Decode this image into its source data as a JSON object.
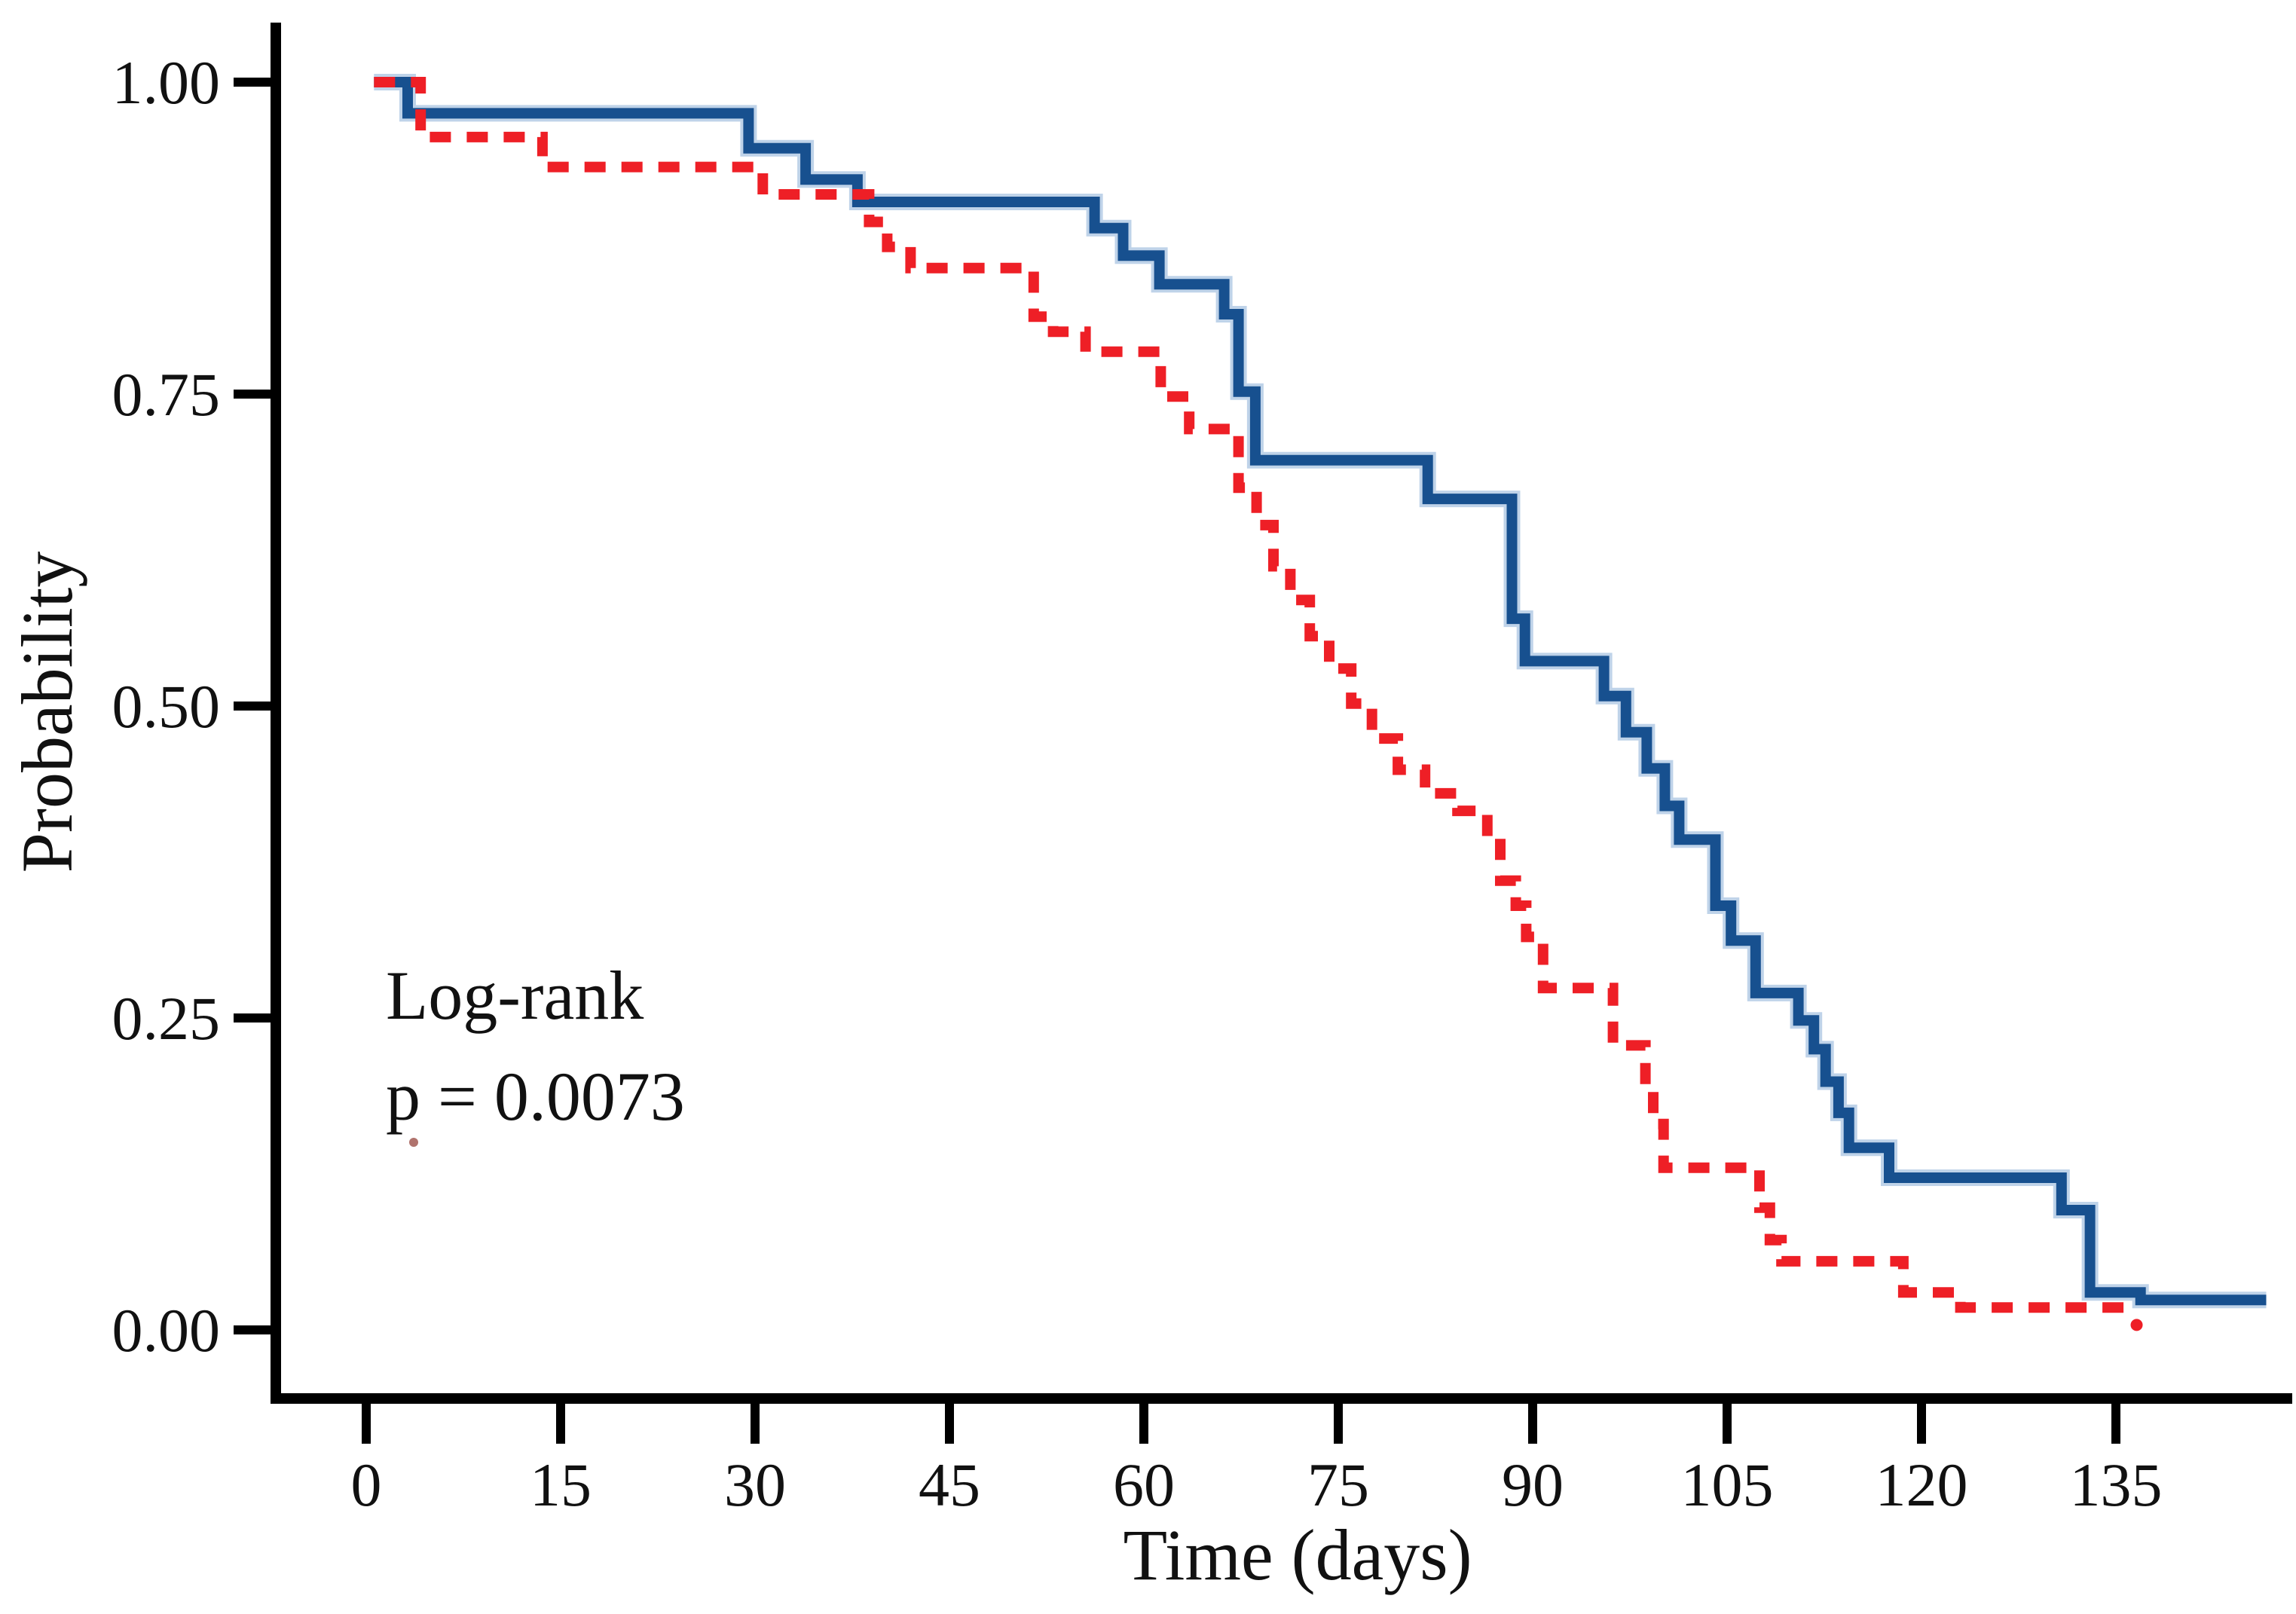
{
  "chart_data": {
    "type": "line",
    "chart_kind": "kaplan-meier-survival",
    "title": "",
    "xlabel": "Time (days)",
    "ylabel": "Probability",
    "x_ticks": [
      0,
      15,
      30,
      45,
      60,
      75,
      90,
      105,
      120,
      135
    ],
    "y_ticks": [
      {
        "value": 1.0,
        "label": "1.00"
      },
      {
        "value": 0.75,
        "label": "0.75"
      },
      {
        "value": 0.5,
        "label": "0.50"
      },
      {
        "value": 0.25,
        "label": "0.25"
      },
      {
        "value": 0.0,
        "label": "0.00"
      }
    ],
    "xlim": [
      0,
      147
    ],
    "ylim": [
      0,
      1
    ],
    "grid": false,
    "legend_position": "none",
    "annotation": {
      "line1": "Log-rank",
      "line2": "p = 0.0073"
    },
    "axis_color": "#000000",
    "series": [
      {
        "name": "group-1-solid-blue",
        "color": "#17508f",
        "halo_color": "#7fa8d4",
        "style": "solid",
        "end_day": 146.6,
        "points": [
          [
            0.6,
            1.0
          ],
          [
            3.2,
            0.975
          ],
          [
            29.5,
            0.947
          ],
          [
            33.9,
            0.922
          ],
          [
            37.9,
            0.904
          ],
          [
            56.2,
            0.883
          ],
          [
            58.4,
            0.861
          ],
          [
            61.2,
            0.838
          ],
          [
            66.2,
            0.814
          ],
          [
            67.3,
            0.752
          ],
          [
            68.6,
            0.697
          ],
          [
            81.9,
            0.666
          ],
          [
            88.4,
            0.57
          ],
          [
            89.4,
            0.536
          ],
          [
            95.5,
            0.508
          ],
          [
            97.2,
            0.479
          ],
          [
            98.8,
            0.45
          ],
          [
            100.2,
            0.42
          ],
          [
            101.3,
            0.393
          ],
          [
            104.1,
            0.34
          ],
          [
            105.3,
            0.312
          ],
          [
            107.2,
            0.27
          ],
          [
            110.5,
            0.248
          ],
          [
            111.7,
            0.225
          ],
          [
            112.6,
            0.199
          ],
          [
            113.6,
            0.174
          ],
          [
            114.4,
            0.146
          ],
          [
            117.5,
            0.122
          ],
          [
            130.8,
            0.096
          ],
          [
            133.0,
            0.03
          ],
          [
            136.9,
            0.024
          ]
        ]
      },
      {
        "name": "group-2-dashed-red",
        "color": "#ee1f26",
        "style": "dashed",
        "end_day": 136.2,
        "end_marker": [
          136.6,
          0.004
        ],
        "points": [
          [
            0.6,
            1.0
          ],
          [
            4.2,
            0.956
          ],
          [
            13.6,
            0.932
          ],
          [
            30.6,
            0.91
          ],
          [
            38.8,
            0.888
          ],
          [
            40.2,
            0.868
          ],
          [
            42.0,
            0.851
          ],
          [
            51.5,
            0.812
          ],
          [
            53.0,
            0.8
          ],
          [
            55.5,
            0.784
          ],
          [
            61.3,
            0.748
          ],
          [
            63.5,
            0.722
          ],
          [
            67.3,
            0.675
          ],
          [
            68.7,
            0.645
          ],
          [
            70.0,
            0.612
          ],
          [
            71.3,
            0.585
          ],
          [
            72.8,
            0.556
          ],
          [
            74.3,
            0.53
          ],
          [
            76.0,
            0.502
          ],
          [
            77.6,
            0.474
          ],
          [
            79.6,
            0.449
          ],
          [
            81.7,
            0.43
          ],
          [
            84.2,
            0.416
          ],
          [
            86.5,
            0.395
          ],
          [
            87.5,
            0.36
          ],
          [
            88.7,
            0.34
          ],
          [
            89.5,
            0.315
          ],
          [
            90.8,
            0.274
          ],
          [
            96.2,
            0.228
          ],
          [
            98.7,
            0.195
          ],
          [
            99.3,
            0.165
          ],
          [
            100.1,
            0.13
          ],
          [
            107.5,
            0.098
          ],
          [
            108.3,
            0.072
          ],
          [
            109.2,
            0.055
          ],
          [
            118.6,
            0.03
          ],
          [
            123.0,
            0.018
          ]
        ]
      }
    ]
  }
}
